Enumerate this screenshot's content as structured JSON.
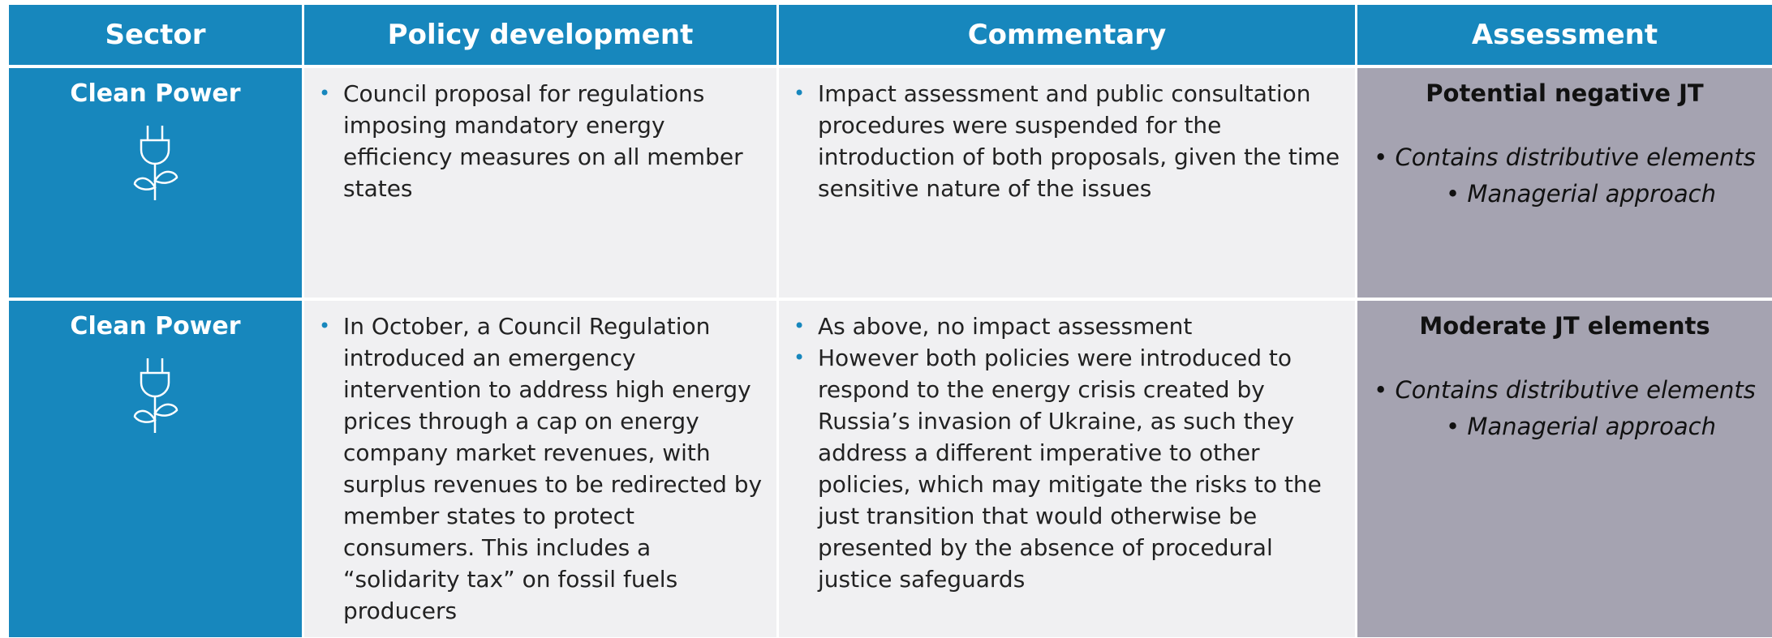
{
  "table": {
    "headers": [
      "Sector",
      "Policy development",
      "Commentary",
      "Assessment"
    ],
    "rows": [
      {
        "sector": "Clean Power",
        "policy": [
          "Council proposal for regulations imposing mandatory energy efficiency measures on all member states"
        ],
        "commentary": [
          "Impact assessment and public consultation procedures were suspended for the introduction of both proposals, given the time sensitive nature of the issues"
        ],
        "assessment_title": "Potential negative JT",
        "assessment": [
          "Contains distributive elements",
          "Managerial approach"
        ]
      },
      {
        "sector": "Clean Power",
        "policy": [
          "In October, a Council Regulation introduced an emergency intervention to address high energy prices through a cap on energy company market revenues, with surplus revenues to be redirected by member states to protect consumers. This includes a “solidarity tax” on fossil fuels producers"
        ],
        "commentary": [
          "As above, no impact assessment",
          "However both policies were introduced to respond to the energy crisis created by Russia’s invasion of Ukraine, as such they address a different imperative to other policies, which may mitigate the risks to the just transition that would otherwise be presented by the absence of procedural justice safeguards"
        ],
        "assessment_title": "Moderate JT elements",
        "assessment": [
          "Contains distributive elements",
          "Managerial approach"
        ]
      }
    ]
  }
}
